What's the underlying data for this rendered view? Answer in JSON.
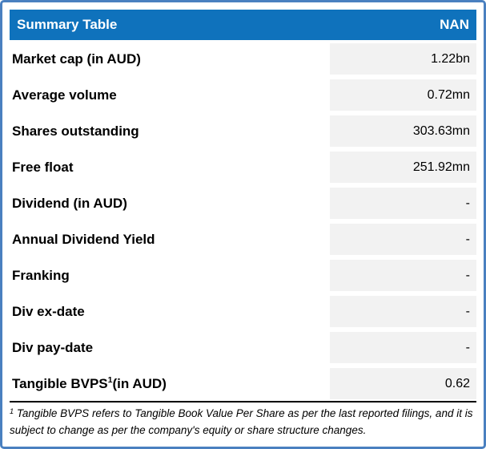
{
  "header": {
    "title": "Summary Table",
    "right_label": "NAN"
  },
  "colors": {
    "header_bg": "#0F72BC",
    "outer_border": "#4A80C0",
    "value_cell_bg": "#F2F2F2",
    "header_text": "#FFFFFF",
    "body_text": "#000000"
  },
  "rows": [
    {
      "label": "Market cap (in AUD)",
      "value": "1.22bn"
    },
    {
      "label": "Average volume",
      "value": "0.72mn"
    },
    {
      "label": "Shares outstanding",
      "value": "303.63mn"
    },
    {
      "label": "Free float",
      "value": "251.92mn"
    },
    {
      "label": "Dividend (in AUD)",
      "value": "-"
    },
    {
      "label": "Annual Dividend Yield",
      "value": "-"
    },
    {
      "label": "Franking",
      "value": "-"
    },
    {
      "label": "Div ex-date",
      "value": "-"
    },
    {
      "label": "Div pay-date",
      "value": "-"
    },
    {
      "label": "Tangible BVPS",
      "label_sup": "1",
      "label_suffix": " (in AUD)",
      "value": "0.62"
    }
  ],
  "footnote": {
    "marker": "1",
    "text": "Tangible BVPS refers to Tangible Book Value Per Share as per the last reported filings, and it is subject to change as per the company's equity or share structure changes."
  }
}
